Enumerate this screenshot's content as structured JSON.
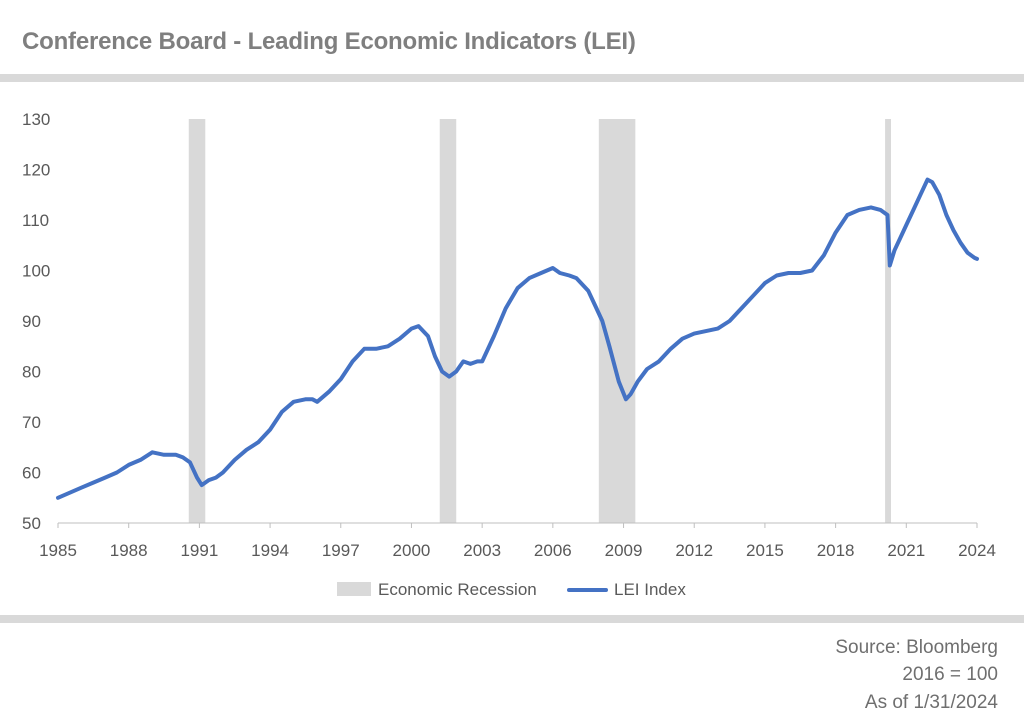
{
  "header": {
    "title": "Conference Board - Leading Economic Indicators (LEI)"
  },
  "footer": {
    "source": "Source: Bloomberg",
    "base": "2016 = 100",
    "asof": "As of 1/31/2024"
  },
  "colors": {
    "series": "#4472c4",
    "recession": "#d9d9d9",
    "rule": "#d9d9d9"
  },
  "chart_data": {
    "type": "line",
    "title": "",
    "xlabel": "",
    "ylabel": "",
    "ylim": [
      50,
      130
    ],
    "xlim": [
      1985,
      2024
    ],
    "yticks": [
      50,
      60,
      70,
      80,
      90,
      100,
      110,
      120,
      130
    ],
    "xticks": [
      "1985",
      "1988",
      "1991",
      "1994",
      "1997",
      "2000",
      "2003",
      "2006",
      "2009",
      "2012",
      "2015",
      "2018",
      "2021",
      "2024"
    ],
    "grid": false,
    "legend": {
      "placement": "bottom-center",
      "entries": [
        "Economic Recession",
        "LEI Index"
      ]
    },
    "recessions": [
      {
        "name": "Economic Recession",
        "start": 1990.55,
        "end": 1991.25
      },
      {
        "name": "Economic Recession",
        "start": 2001.2,
        "end": 2001.9
      },
      {
        "name": "Economic Recession",
        "start": 2007.95,
        "end": 2009.5
      },
      {
        "name": "Economic Recession",
        "start": 2020.1,
        "end": 2020.35
      }
    ],
    "series": [
      {
        "name": "LEI Index",
        "x": [
          1985.0,
          1985.5,
          1986.0,
          1986.5,
          1987.0,
          1987.5,
          1988.0,
          1988.5,
          1989.0,
          1989.5,
          1990.0,
          1990.3,
          1990.6,
          1990.9,
          1991.1,
          1991.4,
          1991.7,
          1992.0,
          1992.5,
          1993.0,
          1993.5,
          1994.0,
          1994.5,
          1995.0,
          1995.5,
          1995.8,
          1996.0,
          1996.5,
          1997.0,
          1997.5,
          1998.0,
          1998.5,
          1999.0,
          1999.5,
          2000.0,
          2000.3,
          2000.7,
          2001.0,
          2001.3,
          2001.6,
          2001.9,
          2002.2,
          2002.5,
          2002.8,
          2003.0,
          2003.5,
          2004.0,
          2004.5,
          2005.0,
          2005.5,
          2006.0,
          2006.3,
          2006.7,
          2007.0,
          2007.5,
          2007.8,
          2008.1,
          2008.4,
          2008.8,
          2009.1,
          2009.3,
          2009.6,
          2010.0,
          2010.5,
          2011.0,
          2011.5,
          2012.0,
          2012.5,
          2013.0,
          2013.5,
          2014.0,
          2014.5,
          2015.0,
          2015.5,
          2016.0,
          2016.5,
          2017.0,
          2017.5,
          2018.0,
          2018.5,
          2019.0,
          2019.5,
          2019.9,
          2020.2,
          2020.3,
          2020.5,
          2020.8,
          2021.0,
          2021.3,
          2021.6,
          2021.9,
          2022.1,
          2022.4,
          2022.7,
          2023.0,
          2023.3,
          2023.6,
          2023.9,
          2024.0
        ],
        "values": [
          55,
          56,
          57,
          58,
          59,
          60,
          61.5,
          62.5,
          64,
          63.5,
          63.5,
          63,
          62,
          59,
          57.5,
          58.5,
          59,
          60,
          62.5,
          64.5,
          66,
          68.5,
          72,
          74,
          74.5,
          74.5,
          74,
          76,
          78.5,
          82,
          84.5,
          84.5,
          85,
          86.5,
          88.5,
          89,
          87,
          83,
          80,
          79,
          80,
          82,
          81.5,
          82,
          82,
          87,
          92.5,
          96.5,
          98.5,
          99.5,
          100.5,
          99.5,
          99,
          98.5,
          96,
          93,
          90,
          85,
          78,
          74.5,
          75.5,
          78,
          80.5,
          82,
          84.5,
          86.5,
          87.5,
          88,
          88.5,
          90,
          92.5,
          95,
          97.5,
          99,
          99.5,
          99.5,
          100,
          103,
          107.5,
          111,
          112,
          112.5,
          112,
          111,
          101,
          104,
          107,
          109,
          112,
          115,
          118,
          117.5,
          115,
          111,
          108,
          105.5,
          103.5,
          102.5,
          102.3
        ]
      }
    ]
  }
}
